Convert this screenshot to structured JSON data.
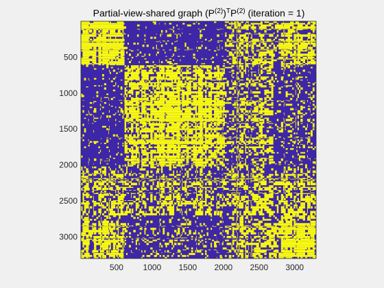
{
  "window": {
    "background": "#f0f0f0"
  },
  "chart_data": {
    "type": "heatmap",
    "title": "Partial-view-shared graph (P(2))TP(2) (iteration = 1)",
    "title_parts": {
      "prefix": "Partial-view-shared graph (P",
      "sup1": "(2)",
      "mid1": ")",
      "sup2": "T",
      "mid2": "P",
      "sup3": "(2)",
      "suffix": " (iteration = 1)"
    },
    "xlabel": "",
    "ylabel": "",
    "xlim": [
      0.5,
      3300.5
    ],
    "ylim": [
      0.5,
      3300.5
    ],
    "y_direction": "reverse",
    "x_ticks": [
      500,
      1000,
      1500,
      2000,
      2500,
      3000
    ],
    "x_tick_labels": [
      "500",
      "1000",
      "1500",
      "2000",
      "2500",
      "3000"
    ],
    "y_ticks": [
      500,
      1000,
      1500,
      2000,
      2500,
      3000
    ],
    "y_tick_labels": [
      "500",
      "1000",
      "1500",
      "2000",
      "2500",
      "3000"
    ],
    "grid": false,
    "colors": {
      "zero": "#3e26a8",
      "one": "#f9fb0e",
      "axis": "#262626",
      "background": "#f0f0f0",
      "axes_face": "#ffffff"
    },
    "clusters": [
      {
        "start": 0,
        "end": 620
      },
      {
        "start": 620,
        "end": 2020
      },
      {
        "start": 2020,
        "end": 2700
      },
      {
        "start": 2700,
        "end": 3300
      }
    ],
    "cluster_density": [
      [
        0.95,
        0.1,
        0.55,
        0.65
      ],
      [
        0.1,
        0.8,
        0.45,
        0.2
      ],
      [
        0.55,
        0.45,
        0.55,
        0.55
      ],
      [
        0.65,
        0.2,
        0.55,
        0.95
      ]
    ],
    "n_nodes": 3300
  }
}
